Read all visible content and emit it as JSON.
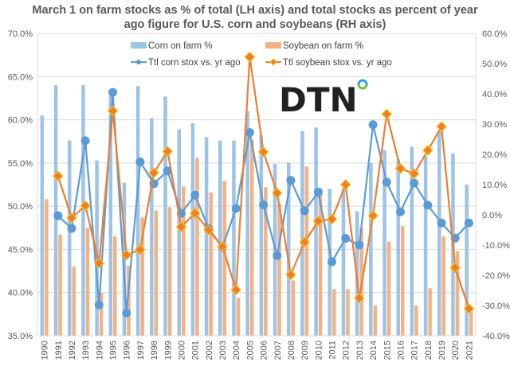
{
  "chart_data": {
    "type": "bar",
    "title_line1": "March 1 on farm stocks as % of total (LH axis) and total stocks as percent of year",
    "title_line2": "ago figure for U.S. corn and soybeans (RH axis)",
    "categories": [
      "1990",
      "1991",
      "1992",
      "1993",
      "1994",
      "1995",
      "1996",
      "1997",
      "1998",
      "1999",
      "2000",
      "2001",
      "2002",
      "2003",
      "2004",
      "2005",
      "2006",
      "2007",
      "2008",
      "2009",
      "2010",
      "2011",
      "2012",
      "2013",
      "2014",
      "2015",
      "2016",
      "2017",
      "2018",
      "2019",
      "2020",
      "2021"
    ],
    "left_axis": {
      "range": [
        35,
        70
      ],
      "step": 5,
      "ticks": [
        "35.0%",
        "40.0%",
        "45.0%",
        "50.0%",
        "55.0%",
        "60.0%",
        "65.0%",
        "70.0%"
      ]
    },
    "right_axis": {
      "range": [
        -40,
        60
      ],
      "step": 10,
      "ticks": [
        "-40.0%",
        "-30.0%",
        "-20.0%",
        "-10.0%",
        "0.0%",
        "10.0%",
        "20.0%",
        "30.0%",
        "40.0%",
        "50.0%",
        "60.0%"
      ]
    },
    "grid": true,
    "legend_position": "top-center",
    "series": [
      {
        "name": "Corn on farm %",
        "type": "bar",
        "axis": "left",
        "color": "#9DC3E6",
        "values": [
          60.5,
          64.0,
          57.6,
          64.0,
          55.3,
          62.8,
          52.7,
          63.9,
          60.2,
          62.7,
          58.9,
          59.6,
          58.0,
          57.6,
          57.6,
          61.0,
          58.2,
          54.9,
          55.0,
          58.7,
          59.1,
          52.0,
          52.1,
          49.4,
          55.0,
          56.5,
          55.4,
          56.9,
          55.8,
          58.7,
          56.1,
          52.5
        ]
      },
      {
        "name": "Soybean on farm %",
        "type": "bar",
        "axis": "left",
        "color": "#F4B183",
        "values": [
          50.8,
          46.7,
          43.0,
          47.5,
          40.0,
          46.5,
          43.1,
          48.7,
          49.5,
          49.9,
          52.3,
          55.6,
          51.6,
          52.9,
          39.4,
          57.7,
          52.2,
          50.3,
          41.4,
          54.6,
          52.1,
          40.4,
          40.4,
          47.5,
          38.5,
          45.9,
          47.7,
          38.5,
          40.5,
          46.5,
          44.8,
          38.4
        ]
      },
      {
        "name": "Ttl corn stox vs. yr ago",
        "type": "line",
        "axis": "right",
        "color": "#5B9BD5",
        "marker": "circle",
        "values": [
          null,
          -0.3,
          -4.5,
          24.5,
          -29.8,
          40.5,
          -32.5,
          17.5,
          10.3,
          14.5,
          0.5,
          6.5,
          -4.5,
          -10.7,
          2.1,
          27.2,
          3.3,
          -13.5,
          11.4,
          1.3,
          7.5,
          -15.5,
          -7.8,
          -10.0,
          29.8,
          10.8,
          1.0,
          10.5,
          3.2,
          -2.7,
          -7.7,
          -2.7
        ]
      },
      {
        "name": "Ttl soybean stox vs. yr ago",
        "type": "line",
        "axis": "right",
        "color": "#ED7D31",
        "marker": "diamond",
        "marker_edge": "#FFC000",
        "values": [
          null,
          12.8,
          -1.0,
          3.0,
          -16.0,
          34.4,
          -13.3,
          -11.5,
          13.9,
          21.0,
          -4.0,
          0.5,
          -5.0,
          -10.5,
          -24.8,
          52.2,
          20.8,
          7.2,
          -19.8,
          -9.0,
          -2.1,
          -1.4,
          10.0,
          -27.5,
          -0.3,
          33.3,
          15.3,
          13.6,
          21.3,
          29.2,
          -17.5,
          -31.0
        ]
      }
    ]
  },
  "logo": {
    "text": "DTN"
  }
}
